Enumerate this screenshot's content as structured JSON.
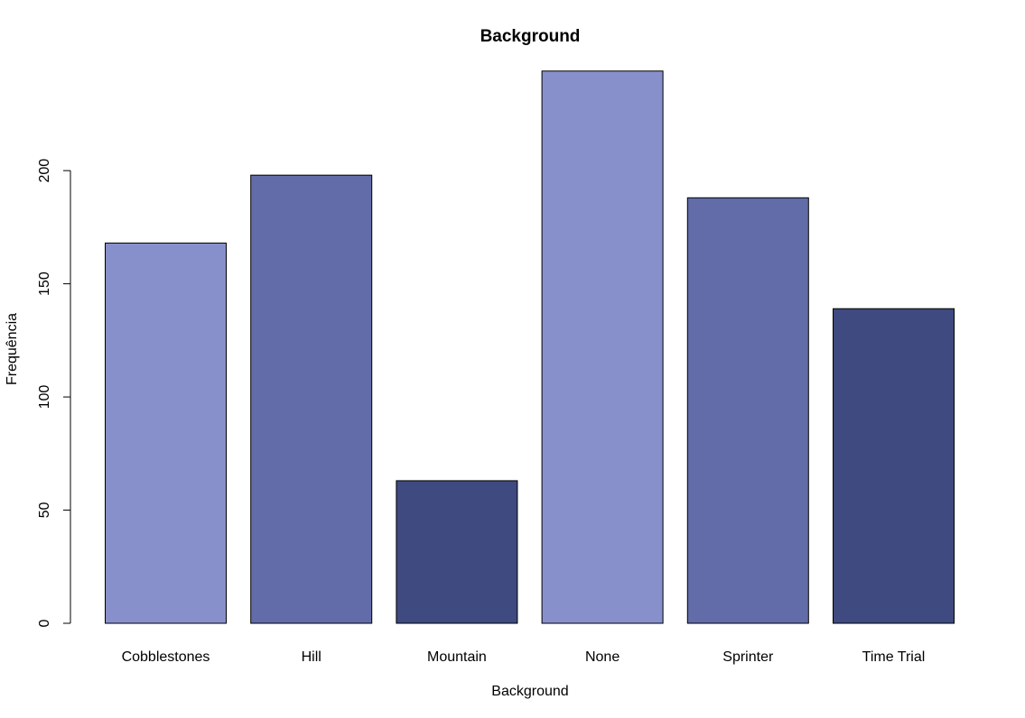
{
  "chart_data": {
    "type": "bar",
    "title": "Background",
    "xlabel": "Background",
    "ylabel": "Frequência",
    "categories": [
      "Cobblestones",
      "Hill",
      "Mountain",
      "None",
      "Sprinter",
      "Time Trial"
    ],
    "values": [
      168,
      198,
      63,
      244,
      188,
      139
    ],
    "ylim": [
      0,
      244
    ],
    "yticks": [
      0,
      50,
      100,
      150,
      200
    ],
    "bar_colors": [
      "#8890cc",
      "#626ca8",
      "#3e4a80",
      "#8890cc",
      "#626ca8",
      "#3e4a80"
    ],
    "grid": false,
    "legend": "none"
  }
}
